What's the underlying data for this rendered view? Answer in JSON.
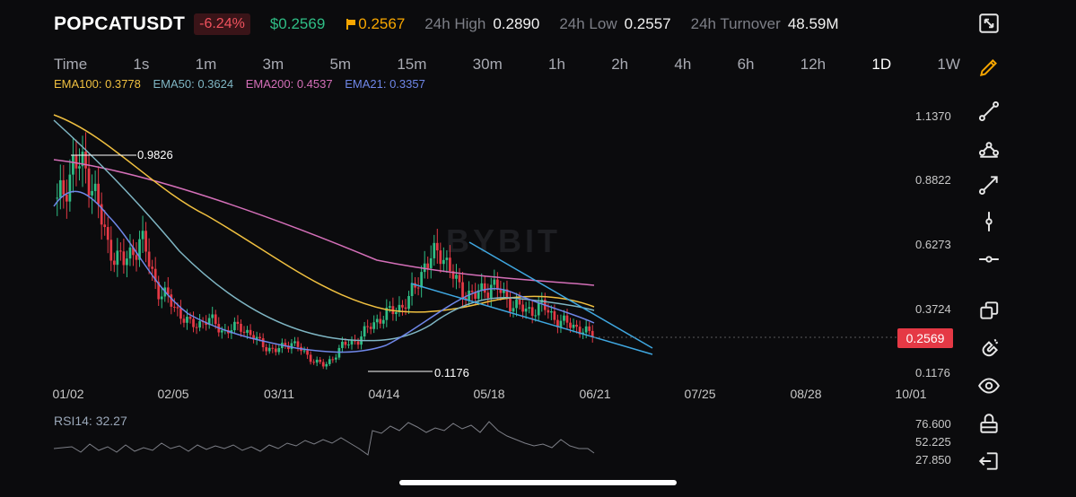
{
  "header": {
    "symbol": "POPCATUSDT",
    "change": "-6.24%",
    "last_price": "$0.2569",
    "mark_price": "0.2567",
    "high_label": "24h High",
    "high_value": "0.2890",
    "low_label": "24h Low",
    "low_value": "0.2557",
    "turnover_label": "24h Turnover",
    "turnover_value": "48.59M"
  },
  "timeframes": [
    {
      "label": "Time",
      "active": false
    },
    {
      "label": "1s",
      "active": false
    },
    {
      "label": "1m",
      "active": false
    },
    {
      "label": "3m",
      "active": false
    },
    {
      "label": "5m",
      "active": false
    },
    {
      "label": "15m",
      "active": false
    },
    {
      "label": "30m",
      "active": false
    },
    {
      "label": "1h",
      "active": false
    },
    {
      "label": "2h",
      "active": false
    },
    {
      "label": "4h",
      "active": false
    },
    {
      "label": "6h",
      "active": false
    },
    {
      "label": "12h",
      "active": false
    },
    {
      "label": "1D",
      "active": true
    },
    {
      "label": "1W",
      "active": false
    }
  ],
  "indicators": {
    "ema100": {
      "label": "EMA100: 0.3778",
      "color": "#f0c040"
    },
    "ema50": {
      "label": "EMA50: 0.3624",
      "color": "#7fb6c4"
    },
    "ema200": {
      "label": "EMA200: 0.4537",
      "color": "#d46fb8"
    },
    "ema21": {
      "label": "EMA21: 0.3357",
      "color": "#6f87e8"
    }
  },
  "watermark": "BYBIT",
  "price_axis": [
    "1.1370",
    "0.8822",
    "0.6273",
    "0.3724",
    "0.1176"
  ],
  "current_price_tag": "0.2569",
  "date_axis": [
    "01/02",
    "02/05",
    "03/11",
    "04/14",
    "05/18",
    "06/21",
    "07/25",
    "08/28",
    "10/01"
  ],
  "annotations": {
    "high_marker": "0.9826",
    "low_marker": "0.1176"
  },
  "rsi": {
    "label": "RSI14: 32.27",
    "axis": [
      "76.600",
      "52.225",
      "27.850"
    ]
  },
  "colors": {
    "up": "#2fbd85",
    "down": "#e53945",
    "background": "#0b0b0d",
    "accent": "#f7a600",
    "trendline": "#3fa7e0"
  },
  "toolbar": [
    "fullscreen-icon",
    "pencil-icon",
    "line-segment-icon",
    "polyline-icon",
    "ray-icon",
    "vertical-line-icon",
    "horizontal-line-icon",
    "layers-icon",
    "magnet-icon",
    "eye-icon",
    "lock-icon",
    "exit-icon"
  ],
  "chart_data": {
    "type": "candlestick",
    "interval": "1D",
    "x_labels": [
      "01/02",
      "02/05",
      "03/11",
      "04/14",
      "05/18",
      "06/21"
    ],
    "approx_closes": [
      0.78,
      0.95,
      0.9,
      0.62,
      0.55,
      0.65,
      0.45,
      0.38,
      0.3,
      0.33,
      0.28,
      0.3,
      0.24,
      0.2,
      0.24,
      0.18,
      0.14,
      0.22,
      0.25,
      0.32,
      0.36,
      0.4,
      0.55,
      0.6,
      0.45,
      0.42,
      0.47,
      0.4,
      0.36,
      0.38,
      0.32,
      0.3,
      0.26
    ],
    "high": 0.9826,
    "low": 0.1176,
    "last": 0.2569,
    "ema": {
      "EMA21": 0.3357,
      "EMA50": 0.3624,
      "EMA100": 0.3778,
      "EMA200": 0.4537
    },
    "rsi14": 32.27
  }
}
